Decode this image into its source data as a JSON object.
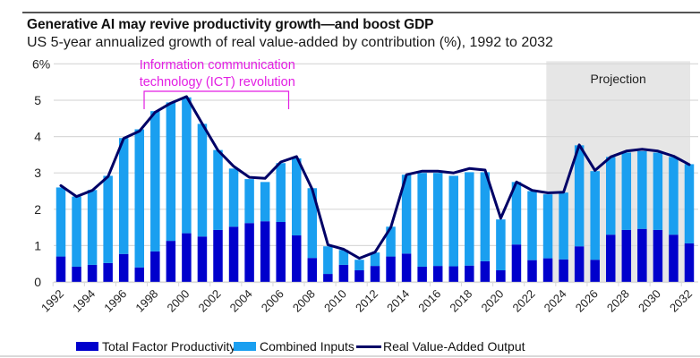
{
  "header": {
    "title": "Generative AI may revive productivity growth—and boost GDP",
    "subtitle": "US 5-year annualized growth of real value-added by contribution (%), 1992 to 2032"
  },
  "colors": {
    "tfp": "#0000cc",
    "inputs": "#1a9ff0",
    "output_line": "#000066",
    "annotation": "#e31ee3",
    "projection_bg": "#e6e6e6",
    "grid": "#d9d9d9"
  },
  "chart_data": {
    "type": "bar",
    "stacked": true,
    "title": "Generative AI may revive productivity growth—and boost GDP",
    "subtitle": "US 5-year annualized growth of real value-added by contribution (%), 1992 to 2032",
    "xlabel": "",
    "ylabel": "",
    "ylim": [
      0,
      6
    ],
    "yticks": [
      0,
      1,
      2,
      3,
      4,
      5,
      6
    ],
    "ytick_labels": [
      "0",
      "1",
      "2",
      "3",
      "4",
      "5",
      "6%"
    ],
    "grid": true,
    "legend_position": "bottom",
    "categories": [
      1992,
      1993,
      1994,
      1995,
      1996,
      1997,
      1998,
      1999,
      2000,
      2001,
      2002,
      2003,
      2004,
      2005,
      2006,
      2007,
      2008,
      2009,
      2010,
      2011,
      2012,
      2013,
      2014,
      2015,
      2016,
      2017,
      2018,
      2019,
      2020,
      2021,
      2022,
      2023,
      2024,
      2025,
      2026,
      2027,
      2028,
      2029,
      2030,
      2031,
      2032
    ],
    "xtick_labels": [
      "1992",
      "1994",
      "1996",
      "1998",
      "2000",
      "2002",
      "2004",
      "2006",
      "2008",
      "2010",
      "2012",
      "2014",
      "2016",
      "2018",
      "2020",
      "2022",
      "2024",
      "2026",
      "2028",
      "2030",
      "2032"
    ],
    "series": [
      {
        "name": "Total Factor Productivity",
        "kind": "bar",
        "values": [
          0.7,
          0.42,
          0.47,
          0.52,
          0.77,
          0.4,
          0.84,
          1.13,
          1.34,
          1.25,
          1.43,
          1.52,
          1.62,
          1.67,
          1.65,
          1.28,
          0.66,
          0.22,
          0.47,
          0.32,
          0.44,
          0.7,
          0.78,
          0.42,
          0.44,
          0.43,
          0.45,
          0.57,
          0.32,
          1.03,
          0.6,
          0.65,
          0.62,
          0.98,
          0.61,
          1.3,
          1.43,
          1.46,
          1.43,
          1.3,
          1.06
        ]
      },
      {
        "name": "Combined Inputs",
        "kind": "bar",
        "values": [
          1.9,
          1.93,
          2.06,
          2.4,
          3.19,
          3.8,
          3.86,
          3.81,
          3.74,
          3.1,
          2.2,
          1.6,
          1.21,
          1.08,
          1.62,
          2.12,
          1.92,
          0.76,
          0.41,
          0.29,
          0.37,
          0.82,
          2.17,
          2.58,
          2.56,
          2.49,
          2.57,
          2.45,
          1.4,
          1.72,
          1.9,
          1.76,
          1.84,
          2.78,
          2.44,
          2.14,
          2.13,
          2.14,
          2.13,
          2.14,
          2.18
        ]
      },
      {
        "name": "Real Value-Added Output",
        "kind": "line",
        "values": [
          2.65,
          2.35,
          2.52,
          2.9,
          3.95,
          4.15,
          4.67,
          4.92,
          5.1,
          4.35,
          3.62,
          3.18,
          2.88,
          2.85,
          3.3,
          3.45,
          2.55,
          1.02,
          0.9,
          0.65,
          0.82,
          1.5,
          2.95,
          3.05,
          3.05,
          3.0,
          3.12,
          3.08,
          1.75,
          2.75,
          2.52,
          2.45,
          2.47,
          3.77,
          3.07,
          3.44,
          3.6,
          3.65,
          3.6,
          3.46,
          3.23
        ]
      }
    ],
    "annotations": [
      {
        "text_lines": [
          "Information communication",
          "technology (ICT) revolution"
        ],
        "bracket_from": 1997.3,
        "bracket_to": 2006.5
      }
    ],
    "shaded_region": {
      "label": "Projection",
      "from": 2022.9,
      "to": 2032.5
    }
  },
  "legend": [
    {
      "label": "Total Factor Productivity",
      "kind": "bar-swatch",
      "series": "tfp"
    },
    {
      "label": "Combined Inputs",
      "kind": "bar-swatch",
      "series": "inputs"
    },
    {
      "label": "Real Value-Added Output",
      "kind": "line-swatch",
      "series": "output_line"
    }
  ]
}
